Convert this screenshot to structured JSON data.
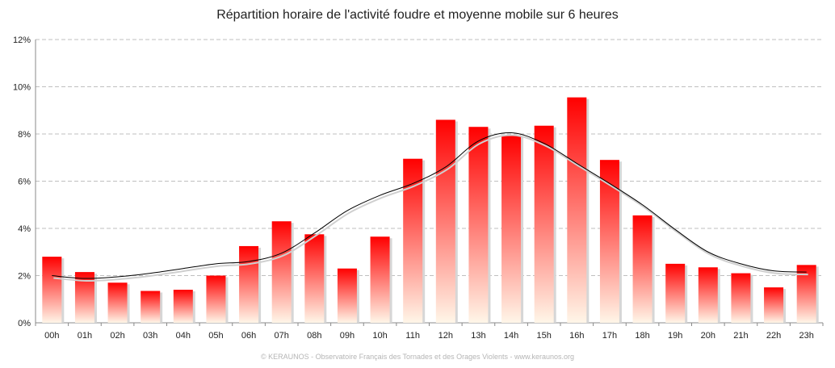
{
  "chart_data": {
    "type": "bar",
    "title": "Répartition horaire de l'activité foudre et moyenne mobile sur 6 heures",
    "categories": [
      "00h",
      "01h",
      "02h",
      "03h",
      "04h",
      "05h",
      "06h",
      "07h",
      "08h",
      "09h",
      "10h",
      "11h",
      "12h",
      "13h",
      "14h",
      "15h",
      "16h",
      "17h",
      "18h",
      "19h",
      "20h",
      "21h",
      "22h",
      "23h"
    ],
    "series": [
      {
        "type": "bar",
        "values": [
          2.8,
          2.15,
          1.7,
          1.35,
          1.4,
          2.0,
          3.25,
          4.3,
          3.75,
          2.3,
          3.65,
          6.95,
          8.6,
          8.3,
          7.95,
          8.35,
          9.55,
          6.9,
          4.55,
          2.5,
          2.35,
          2.1,
          1.5,
          2.45
        ]
      },
      {
        "type": "line",
        "values": [
          2.0,
          1.88,
          1.95,
          2.1,
          2.3,
          2.5,
          2.6,
          2.95,
          3.8,
          4.75,
          5.4,
          5.9,
          6.6,
          7.7,
          8.05,
          7.6,
          6.75,
          5.9,
          5.0,
          3.95,
          3.0,
          2.5,
          2.2,
          2.15
        ]
      }
    ],
    "ylim": [
      0,
      12
    ],
    "yticks": [
      0,
      2,
      4,
      6,
      8,
      10,
      12
    ],
    "ytick_suffix": "%",
    "grid": true,
    "legend": "none",
    "colors": {
      "bar_top": "#ff0000",
      "bar_bottom": "#fff6e8",
      "line": "#000000",
      "grid": "#bfbfbf"
    }
  },
  "footer": "© KERAUNOS - Observatoire Français des Tornades et des Orages Violents - www.keraunos.org"
}
